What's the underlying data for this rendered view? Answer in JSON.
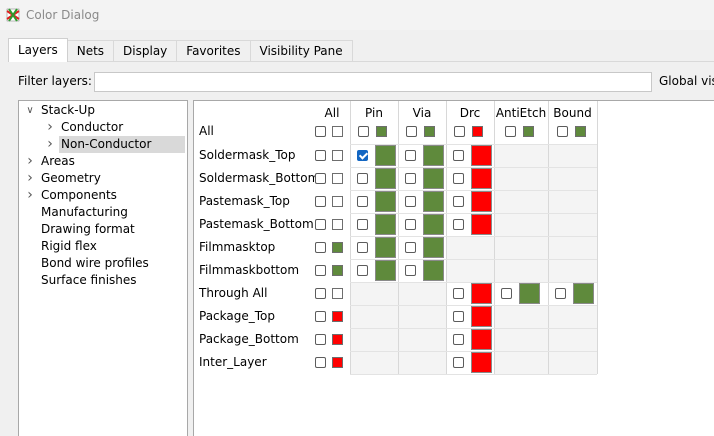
{
  "window": {
    "title": "Color Dialog",
    "icon": "layer-app-icon"
  },
  "tabs": [
    {
      "label": "Layers",
      "active": true
    },
    {
      "label": "Nets",
      "active": false
    },
    {
      "label": "Display",
      "active": false
    },
    {
      "label": "Favorites",
      "active": false
    },
    {
      "label": "Visibility Pane",
      "active": false
    }
  ],
  "filter": {
    "label": "Filter layers:",
    "value": "",
    "global_label": "Global vis"
  },
  "tree": {
    "items": [
      {
        "label": "Stack-Up",
        "expanded": true
      },
      {
        "label": "Conductor",
        "expanded": false
      },
      {
        "label": "Non-Conductor",
        "expanded": false,
        "selected": true
      },
      {
        "label": "Areas",
        "expanded": false
      },
      {
        "label": "Geometry",
        "expanded": false
      },
      {
        "label": "Components",
        "expanded": false
      },
      {
        "label": "Manufacturing"
      },
      {
        "label": "Drawing format"
      },
      {
        "label": "Rigid flex"
      },
      {
        "label": "Bond wire profiles"
      },
      {
        "label": "Surface finishes"
      }
    ]
  },
  "colors": {
    "green": "#5f8a3c",
    "red": "#ff0000",
    "checked": "#1366c2"
  },
  "grid": {
    "all_header": "All",
    "columns": [
      {
        "label": "Pin"
      },
      {
        "label": "Via"
      },
      {
        "label": "Drc"
      },
      {
        "label": "AntiEtch"
      },
      {
        "label": "Bound"
      }
    ],
    "all_row": {
      "label": "All",
      "all": {
        "color": "white"
      },
      "pin": {
        "color": "green"
      },
      "via": {
        "color": "green"
      },
      "drc": {
        "color": "red"
      },
      "antietch": {
        "color": "green"
      },
      "bound": {
        "color": "green"
      }
    },
    "rows": [
      {
        "label": "Soldermask_Top",
        "all": "white",
        "pin": {
          "checked": true,
          "color": "green"
        },
        "via": {
          "color": "green"
        },
        "drc": {
          "color": "red"
        }
      },
      {
        "label": "Soldermask_Bottom",
        "all": "white",
        "pin": {
          "color": "green"
        },
        "via": {
          "color": "green"
        },
        "drc": {
          "color": "red"
        }
      },
      {
        "label": "Pastemask_Top",
        "all": "white",
        "pin": {
          "color": "green"
        },
        "via": {
          "color": "green"
        },
        "drc": {
          "color": "red"
        }
      },
      {
        "label": "Pastemask_Bottom",
        "all": "white",
        "pin": {
          "color": "green"
        },
        "via": {
          "color": "green"
        },
        "drc": {
          "color": "red"
        }
      },
      {
        "label": "Filmmasktop",
        "all": "green",
        "pin": {
          "color": "green"
        },
        "via": {
          "color": "green"
        }
      },
      {
        "label": "Filmmaskbottom",
        "all": "green",
        "pin": {
          "color": "green"
        },
        "via": {
          "color": "green"
        }
      },
      {
        "label": "Through All",
        "all": "white",
        "drc": {
          "color": "red"
        },
        "antietch": {
          "color": "green"
        },
        "bound": {
          "color": "green"
        }
      },
      {
        "label": "Package_Top",
        "all": "red",
        "drc": {
          "color": "red"
        }
      },
      {
        "label": "Package_Bottom",
        "all": "red",
        "drc": {
          "color": "red"
        }
      },
      {
        "label": "Inter_Layer",
        "all": "red",
        "drc": {
          "color": "red"
        }
      }
    ]
  }
}
